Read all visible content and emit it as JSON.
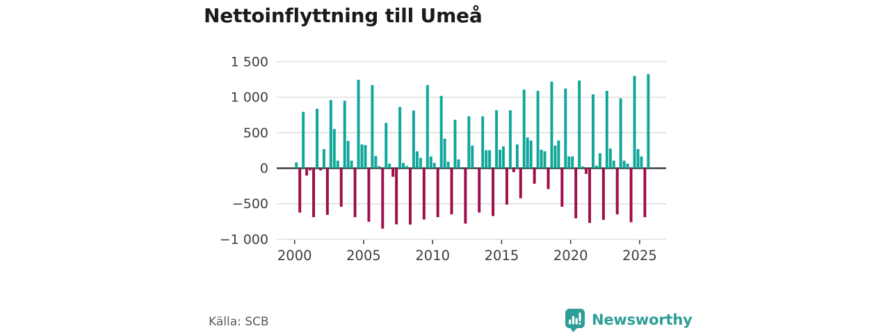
{
  "header": {
    "title": "Nettoinflyttning till Umeå"
  },
  "footer": {
    "source": "Källa: SCB",
    "brand": "Newsworthy"
  },
  "colors": {
    "positive_bar": "#0fa79a",
    "negative_bar": "#a00d4a",
    "grid_line": "#d9d9d9",
    "zero_line": "#3d3d3d",
    "axis_text": "#3d3d3d",
    "title_text": "#1a1a1a",
    "source_text": "#595959",
    "brand_teal": "#2e9d97"
  },
  "chart_data": {
    "type": "bar",
    "title": "Nettoinflyttning till Umeå",
    "frequency": "quarterly",
    "start_year": 2000,
    "end_period": "2025-Q3",
    "xlabel": "",
    "ylabel": "",
    "ylim": [
      -1000,
      1500
    ],
    "grid": true,
    "y_ticks": [
      1500,
      1000,
      500,
      0,
      -500,
      -1000
    ],
    "y_tick_labels": [
      "1 500",
      "1 000",
      "500",
      "0",
      "−500",
      "−1 000"
    ],
    "x_tick_years": [
      2000,
      2005,
      2010,
      2015,
      2020,
      2025
    ],
    "x_tick_labels": [
      "2000",
      "2005",
      "2010",
      "2015",
      "2020",
      "2025"
    ],
    "values": [
      82,
      -624,
      793,
      -103,
      -30,
      -688,
      838,
      -30,
      270,
      -656,
      959,
      553,
      107,
      -542,
      950,
      384,
      107,
      -688,
      1245,
      335,
      326,
      -753,
      1170,
      173,
      30,
      -850,
      638,
      65,
      -120,
      -790,
      862,
      75,
      30,
      -793,
      813,
      238,
      146,
      -722,
      1170,
      166,
      75,
      -688,
      1018,
      416,
      92,
      -649,
      682,
      124,
      0,
      -780,
      731,
      319,
      0,
      -624,
      731,
      254,
      254,
      -673,
      816,
      260,
      309,
      -512,
      816,
      -55,
      335,
      -422,
      1106,
      433,
      390,
      -218,
      1090,
      260,
      238,
      -293,
      1219,
      319,
      390,
      -542,
      1121,
      166,
      166,
      -705,
      1235,
      25,
      -80,
      -770,
      1040,
      36,
      212,
      -727,
      1089,
      277,
      107,
      -649,
      984,
      107,
      65,
      -760,
      1300,
      270,
      166,
      -688,
      1326
    ]
  }
}
